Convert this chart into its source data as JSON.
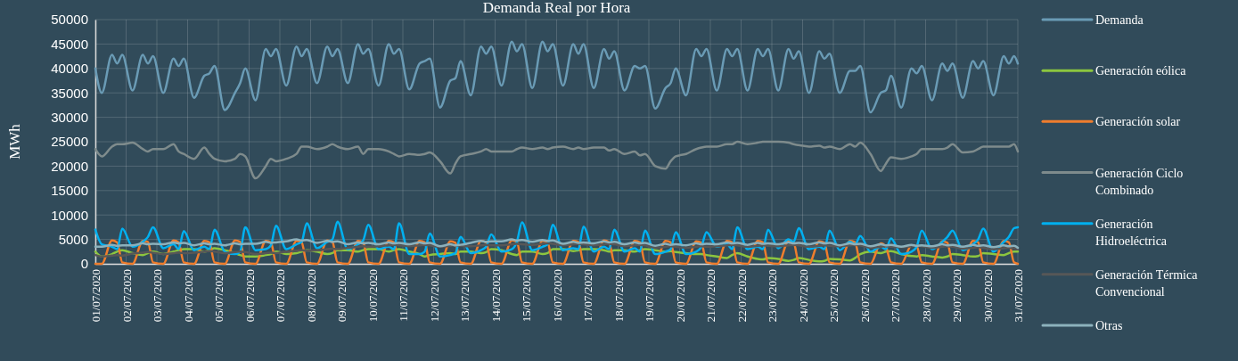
{
  "chart_data": {
    "type": "line",
    "title": "Demanda Real por Hora",
    "ylabel": "MWh",
    "legend": "right",
    "grid": true,
    "ylim": [
      0,
      50000
    ],
    "yticks": [
      0,
      5000,
      10000,
      15000,
      20000,
      25000,
      30000,
      35000,
      40000,
      45000,
      50000
    ],
    "xlim": [
      "2020-07-01T00:00",
      "2020-07-31T00:00"
    ],
    "xticks": [
      {
        "value": "2020-07-01",
        "label": "01/07/2020"
      },
      {
        "value": "2020-07-02",
        "label": "02/07/2020"
      },
      {
        "value": "2020-07-03",
        "label": "03/07/2020"
      },
      {
        "value": "2020-07-04",
        "label": "04/07/2020"
      },
      {
        "value": "2020-07-05",
        "label": "05/07/2020"
      },
      {
        "value": "2020-07-06",
        "label": "06/07/2020"
      },
      {
        "value": "2020-07-07",
        "label": "07/07/2020"
      },
      {
        "value": "2020-07-08",
        "label": "08/07/2020"
      },
      {
        "value": "2020-07-09",
        "label": "09/07/2020"
      },
      {
        "value": "2020-07-10",
        "label": "10/07/2020"
      },
      {
        "value": "2020-07-11",
        "label": "11/07/2020"
      },
      {
        "value": "2020-07-12",
        "label": "12/07/2020"
      },
      {
        "value": "2020-07-13",
        "label": "13/07/2020"
      },
      {
        "value": "2020-07-14",
        "label": "14/07/2020"
      },
      {
        "value": "2020-07-15",
        "label": "15/07/2020"
      },
      {
        "value": "2020-07-16",
        "label": "16/07/2020"
      },
      {
        "value": "2020-07-17",
        "label": "17/07/2020"
      },
      {
        "value": "2020-07-18",
        "label": "18/07/2020"
      },
      {
        "value": "2020-07-19",
        "label": "19/07/2020"
      },
      {
        "value": "2020-07-20",
        "label": "20/07/2020"
      },
      {
        "value": "2020-07-21",
        "label": "21/07/2020"
      },
      {
        "value": "2020-07-22",
        "label": "22/07/2020"
      },
      {
        "value": "2020-07-23",
        "label": "23/07/2020"
      },
      {
        "value": "2020-07-24",
        "label": "24/07/2020"
      },
      {
        "value": "2020-07-25",
        "label": "25/07/2020"
      },
      {
        "value": "2020-07-26",
        "label": "26/07/2020"
      },
      {
        "value": "2020-07-27",
        "label": "27/07/2020"
      },
      {
        "value": "2020-07-28",
        "label": "28/07/2020"
      },
      {
        "value": "2020-07-29",
        "label": "29/07/2020"
      },
      {
        "value": "2020-07-30",
        "label": "30/07/2020"
      },
      {
        "value": "2020-07-31",
        "label": "31/07/2020"
      }
    ],
    "x": [
      "2020-07-01T00:00",
      "2020-07-01T05:00",
      "2020-07-01T13:00",
      "2020-07-01T17:00",
      "2020-07-01T21:00",
      "2020-07-02T05:00",
      "2020-07-02T13:00",
      "2020-07-02T17:00",
      "2020-07-02T21:00",
      "2020-07-03T05:00",
      "2020-07-03T13:00",
      "2020-07-03T17:00",
      "2020-07-03T21:00",
      "2020-07-04T05:00",
      "2020-07-04T13:00",
      "2020-07-04T17:00",
      "2020-07-04T21:00",
      "2020-07-05T05:00",
      "2020-07-05T13:00",
      "2020-07-05T17:00",
      "2020-07-05T21:00",
      "2020-07-06T05:00",
      "2020-07-06T13:00",
      "2020-07-06T17:00",
      "2020-07-06T21:00",
      "2020-07-07T05:00",
      "2020-07-07T13:00",
      "2020-07-07T17:00",
      "2020-07-07T21:00",
      "2020-07-08T05:00",
      "2020-07-08T13:00",
      "2020-07-08T17:00",
      "2020-07-08T21:00",
      "2020-07-09T05:00",
      "2020-07-09T13:00",
      "2020-07-09T17:00",
      "2020-07-09T21:00",
      "2020-07-10T05:00",
      "2020-07-10T13:00",
      "2020-07-10T17:00",
      "2020-07-10T21:00",
      "2020-07-11T05:00",
      "2020-07-11T13:00",
      "2020-07-11T17:00",
      "2020-07-11T21:00",
      "2020-07-12T05:00",
      "2020-07-12T13:00",
      "2020-07-12T17:00",
      "2020-07-12T21:00",
      "2020-07-13T05:00",
      "2020-07-13T13:00",
      "2020-07-13T17:00",
      "2020-07-13T21:00",
      "2020-07-14T05:00",
      "2020-07-14T13:00",
      "2020-07-14T17:00",
      "2020-07-14T21:00",
      "2020-07-15T05:00",
      "2020-07-15T13:00",
      "2020-07-15T17:00",
      "2020-07-15T21:00",
      "2020-07-16T05:00",
      "2020-07-16T13:00",
      "2020-07-16T17:00",
      "2020-07-16T21:00",
      "2020-07-17T05:00",
      "2020-07-17T13:00",
      "2020-07-17T17:00",
      "2020-07-17T21:00",
      "2020-07-18T05:00",
      "2020-07-18T13:00",
      "2020-07-18T17:00",
      "2020-07-18T21:00",
      "2020-07-19T05:00",
      "2020-07-19T13:00",
      "2020-07-19T17:00",
      "2020-07-19T21:00",
      "2020-07-20T05:00",
      "2020-07-20T13:00",
      "2020-07-20T17:00",
      "2020-07-20T21:00",
      "2020-07-21T05:00",
      "2020-07-21T13:00",
      "2020-07-21T17:00",
      "2020-07-21T21:00",
      "2020-07-22T05:00",
      "2020-07-22T13:00",
      "2020-07-22T17:00",
      "2020-07-22T21:00",
      "2020-07-23T05:00",
      "2020-07-23T13:00",
      "2020-07-23T17:00",
      "2020-07-23T21:00",
      "2020-07-24T05:00",
      "2020-07-24T13:00",
      "2020-07-24T17:00",
      "2020-07-24T21:00",
      "2020-07-25T05:00",
      "2020-07-25T13:00",
      "2020-07-25T17:00",
      "2020-07-25T21:00",
      "2020-07-26T05:00",
      "2020-07-26T13:00",
      "2020-07-26T17:00",
      "2020-07-26T21:00",
      "2020-07-27T05:00",
      "2020-07-27T13:00",
      "2020-07-27T17:00",
      "2020-07-27T21:00",
      "2020-07-28T05:00",
      "2020-07-28T13:00",
      "2020-07-28T17:00",
      "2020-07-28T21:00",
      "2020-07-29T05:00",
      "2020-07-29T13:00",
      "2020-07-29T17:00",
      "2020-07-29T21:00",
      "2020-07-30T05:00",
      "2020-07-30T13:00",
      "2020-07-30T17:00",
      "2020-07-30T21:00",
      "2020-07-31T00:00"
    ],
    "series": [
      {
        "name": "Demanda",
        "color": "#6a9bb5",
        "values": [
          40000,
          35000,
          42800,
          41000,
          42800,
          35500,
          42800,
          41000,
          42500,
          35000,
          42000,
          40500,
          42000,
          34000,
          38500,
          39000,
          40500,
          31500,
          35000,
          37000,
          40000,
          33500,
          44000,
          42500,
          44000,
          36500,
          44500,
          42500,
          44000,
          37000,
          44500,
          42500,
          44000,
          37000,
          45000,
          43000,
          44000,
          36500,
          45000,
          43000,
          44000,
          35700,
          41000,
          41500,
          42000,
          32000,
          37500,
          38000,
          41500,
          34500,
          44500,
          43000,
          44500,
          36500,
          45500,
          43500,
          45000,
          36000,
          45500,
          43500,
          45000,
          36500,
          45000,
          43000,
          45000,
          36000,
          44000,
          42000,
          43500,
          35500,
          40500,
          40000,
          40500,
          31800,
          36000,
          37000,
          40000,
          34500,
          44000,
          42500,
          44000,
          35500,
          44000,
          42500,
          44000,
          35500,
          44000,
          42500,
          44000,
          35500,
          44000,
          42000,
          43500,
          35000,
          43500,
          42000,
          43000,
          35000,
          39500,
          39500,
          40500,
          31000,
          35000,
          35500,
          38500,
          32000,
          40000,
          39000,
          40500,
          33500,
          41000,
          39500,
          41000,
          34000,
          41500,
          40000,
          41500,
          34500,
          42500,
          41000,
          42500,
          41000
        ]
      },
      {
        "name": "Generación eólica",
        "color": "#8cc63f",
        "values": [
          2500,
          1500,
          2000,
          2500,
          2800,
          2200,
          1800,
          2200,
          2500,
          2000,
          2500,
          2800,
          3000,
          3000,
          2500,
          2800,
          3200,
          2800,
          2200,
          1800,
          1500,
          1500,
          1800,
          2000,
          2500,
          2000,
          2200,
          2500,
          2800,
          2500,
          2000,
          2200,
          2800,
          2800,
          2500,
          2800,
          3000,
          3000,
          2500,
          2800,
          3000,
          2500,
          2000,
          1500,
          1800,
          2000,
          2200,
          2000,
          2500,
          2500,
          2200,
          2400,
          3000,
          2800,
          2000,
          1800,
          2500,
          2500,
          2000,
          2200,
          3000,
          3000,
          2600,
          2800,
          3000,
          3000,
          2800,
          2500,
          2800,
          2800,
          2500,
          2800,
          3000,
          2800,
          2500,
          2600,
          2400,
          2200,
          2000,
          2000,
          1800,
          1500,
          1200,
          1800,
          2200,
          1500,
          1000,
          900,
          1200,
          1000,
          600,
          800,
          1200,
          800,
          500,
          600,
          1000,
          900,
          700,
          1200,
          2000,
          2500,
          2200,
          2500,
          2600,
          2000,
          1600,
          1500,
          1800,
          1500,
          1300,
          1500,
          2000,
          1800,
          1500,
          1600,
          2200,
          2000,
          1800,
          2200,
          2500,
          2500
        ]
      },
      {
        "name": "Generación solar",
        "color": "#ef7d2d",
        "values": [
          0,
          0,
          4800,
          4400,
          300,
          0,
          4700,
          4500,
          300,
          0,
          4800,
          4400,
          300,
          0,
          4700,
          4400,
          300,
          0,
          4800,
          4500,
          300,
          0,
          4700,
          4400,
          300,
          0,
          4700,
          4400,
          300,
          0,
          4800,
          4500,
          300,
          0,
          4700,
          4400,
          300,
          0,
          4700,
          4400,
          300,
          0,
          4700,
          4400,
          300,
          0,
          4600,
          4300,
          300,
          0,
          4700,
          4400,
          300,
          0,
          4800,
          4500,
          300,
          0,
          4700,
          4400,
          300,
          0,
          4700,
          4500,
          300,
          0,
          4800,
          4400,
          300,
          0,
          4700,
          4400,
          300,
          0,
          4700,
          4400,
          300,
          0,
          4600,
          4300,
          300,
          0,
          4700,
          4400,
          300,
          0,
          4700,
          4400,
          300,
          0,
          4700,
          4400,
          300,
          0,
          4600,
          4300,
          300,
          0,
          4700,
          4400,
          300,
          0,
          4200,
          3500,
          300,
          0,
          3800,
          3600,
          300,
          0,
          4600,
          4300,
          300,
          0,
          4700,
          4400,
          300,
          0,
          4700,
          4400,
          300,
          0
        ]
      },
      {
        "name": "Generación Ciclo Combinado",
        "color": "#7e8b8c",
        "values": [
          23500,
          22000,
          24000,
          24500,
          24500,
          24800,
          23500,
          23000,
          23500,
          23500,
          24500,
          23000,
          22500,
          21500,
          23800,
          22500,
          21500,
          21000,
          21500,
          22500,
          22000,
          17500,
          20000,
          21500,
          21000,
          21500,
          22500,
          24000,
          24000,
          23500,
          24000,
          24500,
          24000,
          23500,
          24000,
          22500,
          23500,
          23500,
          23000,
          22500,
          22000,
          22500,
          22300,
          22500,
          22800,
          21000,
          18500,
          20500,
          22000,
          22500,
          23000,
          23500,
          23000,
          23000,
          23000,
          23500,
          23800,
          23500,
          23800,
          23500,
          23800,
          24000,
          23500,
          23800,
          23500,
          23800,
          23800,
          23200,
          23500,
          22500,
          23000,
          22200,
          22500,
          20000,
          19500,
          21000,
          22000,
          22500,
          23500,
          23800,
          24000,
          24000,
          24500,
          24500,
          25000,
          24500,
          24800,
          25000,
          25000,
          25000,
          24800,
          24500,
          24300,
          24000,
          24200,
          23800,
          24000,
          23500,
          24500,
          24000,
          24800,
          22500,
          19000,
          20500,
          21800,
          21500,
          22000,
          22500,
          23500,
          23500,
          23500,
          23800,
          24500,
          22800,
          23000,
          23500,
          24000,
          24000,
          24000,
          24000,
          24500,
          23000
        ]
      },
      {
        "name": "Generación Hidroeléctrica",
        "color": "#00b0f0",
        "values": [
          7000,
          4000,
          3500,
          3000,
          7200,
          3500,
          4500,
          5500,
          7500,
          3200,
          4000,
          3000,
          6700,
          2800,
          3500,
          3000,
          7000,
          2500,
          2000,
          2500,
          7500,
          2800,
          3000,
          3800,
          7800,
          3000,
          4000,
          4500,
          8300,
          3200,
          4500,
          5000,
          8600,
          3000,
          4000,
          4800,
          8000,
          3000,
          3500,
          3000,
          8300,
          2000,
          2000,
          2500,
          6200,
          1500,
          1800,
          2200,
          5500,
          2200,
          2800,
          3500,
          6000,
          2500,
          3000,
          4500,
          8500,
          2800,
          3500,
          4000,
          8000,
          2800,
          3200,
          3000,
          7600,
          2500,
          3500,
          3000,
          7000,
          2500,
          3200,
          2500,
          6800,
          2000,
          2500,
          3000,
          6500,
          2000,
          2500,
          3500,
          6500,
          3500,
          4000,
          3000,
          7500,
          3000,
          3500,
          3000,
          7000,
          3200,
          5000,
          4500,
          7300,
          3000,
          3500,
          3000,
          6800,
          2800,
          4500,
          4000,
          5700,
          2500,
          3500,
          3000,
          5200,
          2000,
          2500,
          3500,
          6800,
          3000,
          4500,
          5500,
          6800,
          2800,
          4000,
          5000,
          7200,
          2500,
          4500,
          5500,
          7300,
          7500
        ]
      },
      {
        "name": "Generación Térmica Convencional",
        "color": "#575757",
        "values": [
          1800,
          1500,
          1700,
          1800,
          1700,
          2100,
          2300,
          2400,
          2300,
          2000,
          2200,
          2300,
          2200,
          2300,
          2500,
          2600,
          2500,
          2200,
          2400,
          2500,
          2400,
          2000,
          2200,
          2300,
          2200,
          2500,
          2700,
          2800,
          2700,
          2800,
          3000,
          3100,
          3000,
          3300,
          3500,
          3600,
          3500,
          3600,
          3800,
          3900,
          3800,
          3600,
          3800,
          3900,
          3800,
          3500,
          3700,
          3800,
          3700,
          3600,
          3800,
          3900,
          3800,
          3800,
          4000,
          4100,
          4000,
          3900,
          4100,
          4200,
          4100,
          3800,
          4000,
          4100,
          4000,
          3800,
          4000,
          4100,
          4000,
          3600,
          3800,
          3900,
          3800,
          3300,
          3500,
          3600,
          3500,
          3300,
          3500,
          3600,
          3500,
          3600,
          3800,
          3900,
          3800,
          3500,
          3700,
          3800,
          3700,
          3600,
          3800,
          3900,
          3800,
          3500,
          3700,
          3800,
          3700,
          3600,
          3800,
          3900,
          3800,
          3300,
          3500,
          3600,
          3500,
          3400,
          3600,
          3700,
          3600,
          3300,
          3500,
          3600,
          3500,
          3100,
          3300,
          3400,
          3300,
          3000,
          3200,
          3300,
          3200,
          3000
        ]
      },
      {
        "name": "Otras",
        "color": "#8cb1bc",
        "values": [
          3500,
          3500,
          3900,
          3700,
          3800,
          3800,
          4200,
          4000,
          4100,
          4000,
          4400,
          4200,
          4300,
          3800,
          4200,
          4000,
          4100,
          3800,
          4200,
          4000,
          4100,
          4100,
          4500,
          4300,
          4400,
          4600,
          5000,
          4800,
          4900,
          4300,
          4700,
          4500,
          4600,
          4000,
          4400,
          4200,
          4300,
          4000,
          4400,
          4200,
          4300,
          4000,
          4400,
          4200,
          4300,
          3600,
          4000,
          3800,
          3900,
          4300,
          4700,
          4500,
          4600,
          4600,
          5000,
          4800,
          4900,
          4500,
          4900,
          4700,
          4800,
          4100,
          4500,
          4300,
          4400,
          4200,
          4600,
          4400,
          4500,
          4000,
          4400,
          4200,
          4300,
          3700,
          4100,
          3900,
          4000,
          3800,
          4200,
          4000,
          4100,
          4000,
          4400,
          4200,
          4300,
          3900,
          4300,
          4100,
          4200,
          4000,
          4400,
          4200,
          4300,
          4000,
          4400,
          4200,
          4300,
          3800,
          4200,
          4000,
          4100,
          3600,
          4000,
          3800,
          3900,
          3500,
          3900,
          3700,
          3800,
          3600,
          4000,
          3800,
          3900,
          3500,
          3900,
          3700,
          3800,
          3400,
          3800,
          3600,
          3700,
          3300
        ]
      }
    ]
  }
}
